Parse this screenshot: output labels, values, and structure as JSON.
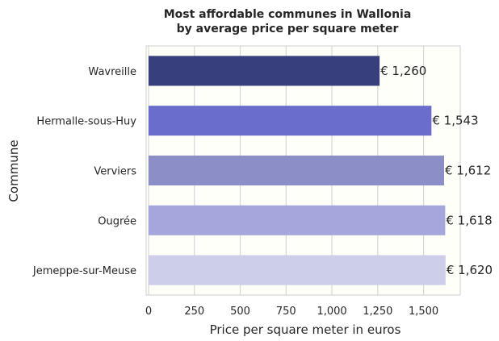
{
  "chart_data": {
    "type": "bar",
    "orientation": "horizontal",
    "title": [
      "Most affordable communes in Wallonia",
      "by average price per square meter"
    ],
    "xlabel": "Price  per square meter in euros",
    "ylabel": "Commune",
    "categories": [
      "Wavreille",
      "Hermalle-sous-Huy",
      "Verviers",
      "Ougrée",
      "Jemeppe-sur-Meuse"
    ],
    "values": [
      1260,
      1543,
      1612,
      1618,
      1620
    ],
    "value_labels": [
      "€ 1,260",
      "€ 1,543",
      "€ 1,612",
      "€ 1,618",
      "€ 1,620"
    ],
    "colors": [
      "#373f7c",
      "#6b6dcd",
      "#8c8ec8",
      "#a5a7dc",
      "#cdcee9"
    ],
    "xlim": [
      0,
      1700
    ],
    "xticks": [
      0,
      250,
      500,
      750,
      1000,
      1250,
      1500
    ],
    "xtick_labels": [
      "0",
      "250",
      "500",
      "750",
      "1,000",
      "1,250",
      "1,500"
    ],
    "grid": true
  }
}
